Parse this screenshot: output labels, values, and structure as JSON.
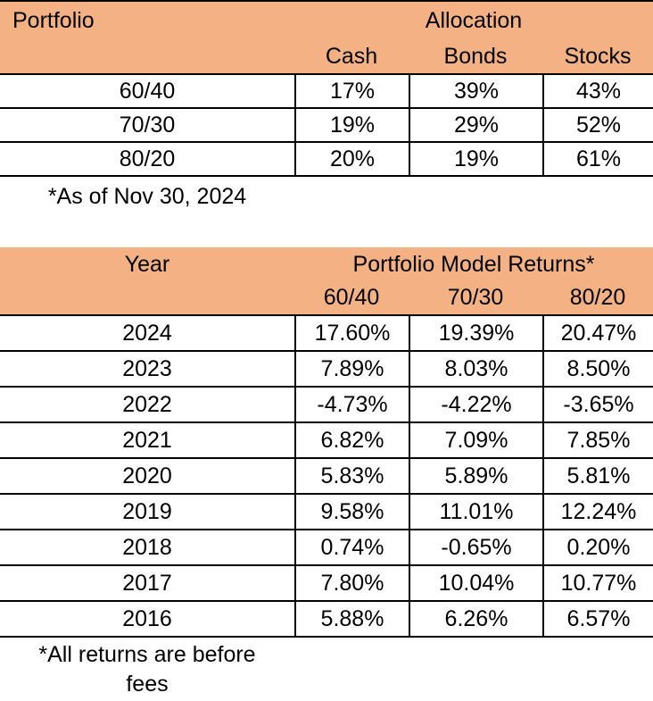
{
  "colors": {
    "header_bg": "#F4B183",
    "border": "#000000",
    "text": "#000000",
    "background": "#FFFFFF"
  },
  "chart_data": [
    {
      "type": "table",
      "corner_label": "Portfolio",
      "group_header": "Allocation",
      "columns": [
        "Cash",
        "Bonds",
        "Stocks"
      ],
      "rows": [
        {
          "label": "60/40",
          "values": [
            "17%",
            "39%",
            "43%"
          ]
        },
        {
          "label": "70/30",
          "values": [
            "19%",
            "29%",
            "52%"
          ]
        },
        {
          "label": "80/20",
          "values": [
            "20%",
            "19%",
            "61%"
          ]
        }
      ],
      "footnote": "*As of Nov 30, 2024"
    },
    {
      "type": "table",
      "corner_label": "Year",
      "group_header": "Portfolio Model Returns*",
      "columns": [
        "60/40",
        "70/30",
        "80/20"
      ],
      "rows": [
        {
          "label": "2024",
          "values": [
            "17.60%",
            "19.39%",
            "20.47%"
          ]
        },
        {
          "label": "2023",
          "values": [
            "7.89%",
            "8.03%",
            "8.50%"
          ]
        },
        {
          "label": "2022",
          "values": [
            "-4.73%",
            "-4.22%",
            "-3.65%"
          ]
        },
        {
          "label": "2021",
          "values": [
            "6.82%",
            "7.09%",
            "7.85%"
          ]
        },
        {
          "label": "2020",
          "values": [
            "5.83%",
            "5.89%",
            "5.81%"
          ]
        },
        {
          "label": "2019",
          "values": [
            "9.58%",
            "11.01%",
            "12.24%"
          ]
        },
        {
          "label": "2018",
          "values": [
            "0.74%",
            "-0.65%",
            "0.20%"
          ]
        },
        {
          "label": "2017",
          "values": [
            "7.80%",
            "10.04%",
            "10.77%"
          ]
        },
        {
          "label": "2016",
          "values": [
            "5.88%",
            "6.26%",
            "6.57%"
          ]
        }
      ],
      "footnote_lines": [
        "*All returns are before",
        "fees"
      ]
    }
  ]
}
